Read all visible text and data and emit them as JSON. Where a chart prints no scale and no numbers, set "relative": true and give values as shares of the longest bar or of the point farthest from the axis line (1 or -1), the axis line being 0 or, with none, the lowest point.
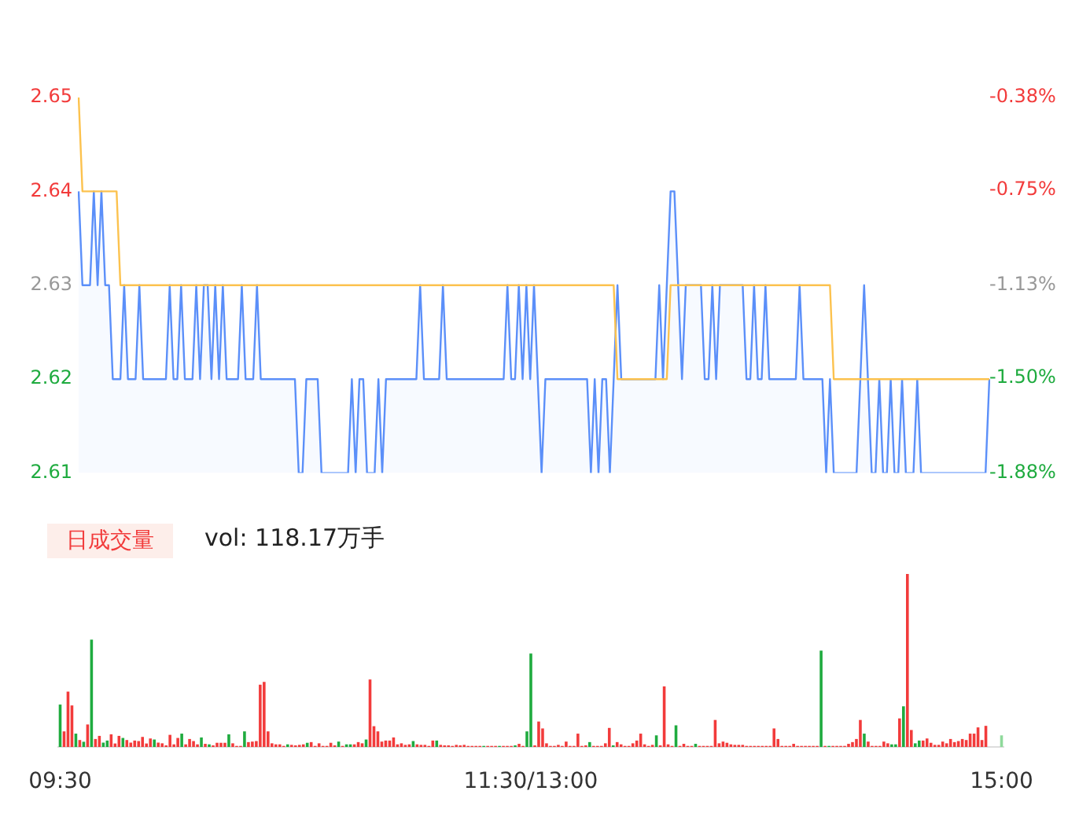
{
  "chart_data": [
    {
      "type": "line",
      "categories": [
        null,
        null,
        null,
        null,
        null,
        null,
        null,
        null,
        null,
        null,
        null,
        null,
        null,
        null,
        null,
        null,
        null,
        null,
        null,
        null,
        null,
        null,
        null,
        null,
        null,
        null,
        null,
        null,
        null,
        null,
        null,
        null,
        null,
        null,
        null,
        null,
        null,
        null,
        null,
        null,
        null,
        null,
        null,
        null,
        null,
        null,
        null,
        null,
        null,
        null,
        null,
        null,
        null,
        null,
        null,
        null,
        null,
        null,
        null,
        null,
        null,
        null,
        null,
        null,
        null,
        null,
        null,
        null,
        null,
        null,
        null,
        null,
        null,
        null,
        null,
        null,
        null,
        null,
        null,
        null,
        null,
        null,
        null,
        null,
        null,
        null,
        null,
        null,
        null,
        null,
        null,
        null,
        null,
        null,
        null,
        null,
        null,
        null,
        null,
        null,
        null,
        null,
        null,
        null,
        null,
        null,
        null,
        null,
        null,
        null,
        null,
        null,
        null,
        null,
        null,
        null,
        null,
        null,
        null,
        null,
        null,
        null,
        null,
        null,
        null,
        null,
        null,
        null,
        null,
        null,
        null,
        null,
        null,
        null,
        null,
        null,
        null,
        null,
        null,
        null,
        null,
        null,
        null,
        null,
        null,
        null,
        null,
        null,
        null,
        null,
        null,
        null,
        null,
        null,
        null,
        null,
        null,
        null,
        null,
        null,
        null,
        null,
        null,
        null,
        null,
        null,
        null,
        null,
        null,
        null,
        null,
        null,
        null,
        null,
        null,
        null,
        null,
        null,
        null,
        null,
        null,
        null,
        null,
        null,
        null,
        null,
        null,
        null,
        null,
        null,
        null,
        null,
        null,
        null,
        null,
        null,
        null,
        null,
        null,
        null,
        null,
        null,
        null,
        null,
        null,
        null,
        null,
        null,
        null,
        null,
        null,
        null,
        null,
        null,
        null,
        null,
        null,
        null,
        null,
        null,
        null,
        null,
        null,
        null,
        null,
        null,
        null,
        null,
        null,
        null,
        null,
        null,
        null,
        null,
        null,
        null,
        null,
        null,
        null,
        null,
        null
      ],
      "ylim": [
        2.61,
        2.65
      ],
      "yticks": [
        2.61,
        2.62,
        2.63,
        2.64,
        2.65
      ],
      "y2lim": [
        -1.88,
        -0.38
      ],
      "y2ticks": [
        {
          "value": -1.88,
          "label": "-1.88%"
        },
        {
          "value": -1.5,
          "label": "-1.50%"
        },
        {
          "value": -1.13,
          "label": "-1.13%"
        },
        {
          "value": -0.75,
          "label": "-0.75%"
        },
        {
          "value": -0.38,
          "label": "-0.38%"
        }
      ],
      "tick_labels": "y",
      "marker": "none",
      "series": [
        {
          "type": "area",
          "color": "#5b8ff9",
          "values": [
            2.64,
            2.63,
            2.63,
            2.63,
            2.64,
            2.63,
            2.64,
            2.63,
            2.63,
            2.62,
            2.62,
            2.62,
            2.63,
            2.62,
            2.62,
            2.62,
            2.63,
            2.62,
            2.62,
            2.62,
            2.62,
            2.62,
            2.62,
            2.62,
            2.63,
            2.62,
            2.62,
            2.63,
            2.62,
            2.62,
            2.62,
            2.63,
            2.62,
            2.63,
            2.63,
            2.62,
            2.63,
            2.62,
            2.63,
            2.62,
            2.62,
            2.62,
            2.62,
            2.63,
            2.62,
            2.62,
            2.62,
            2.63,
            2.62,
            2.62,
            2.62,
            2.62,
            2.62,
            2.62,
            2.62,
            2.62,
            2.62,
            2.62,
            2.61,
            2.61,
            2.62,
            2.62,
            2.62,
            2.62,
            2.61,
            2.61,
            2.61,
            2.61,
            2.61,
            2.61,
            2.61,
            2.61,
            2.62,
            2.61,
            2.62,
            2.62,
            2.61,
            2.61,
            2.61,
            2.62,
            2.61,
            2.62,
            2.62,
            2.62,
            2.62,
            2.62,
            2.62,
            2.62,
            2.62,
            2.62,
            2.63,
            2.62,
            2.62,
            2.62,
            2.62,
            2.62,
            2.63,
            2.62,
            2.62,
            2.62,
            2.62,
            2.62,
            2.62,
            2.62,
            2.62,
            2.62,
            2.62,
            2.62,
            2.62,
            2.62,
            2.62,
            2.62,
            2.62,
            2.63,
            2.62,
            2.62,
            2.63,
            2.62,
            2.63,
            2.62,
            2.63,
            2.62,
            2.61,
            2.62,
            2.62,
            2.62,
            2.62,
            2.62,
            2.62,
            2.62,
            2.62,
            2.62,
            2.62,
            2.62,
            2.62,
            2.61,
            2.62,
            2.61,
            2.62,
            2.62,
            2.61,
            2.62,
            2.63,
            2.62,
            2.62,
            2.62,
            2.62,
            2.62,
            2.62,
            2.62,
            2.62,
            2.62,
            2.62,
            2.63,
            2.62,
            2.63,
            2.64,
            2.64,
            2.63,
            2.62,
            2.63,
            2.63,
            2.63,
            2.63,
            2.63,
            2.62,
            2.62,
            2.63,
            2.62,
            2.63,
            2.63,
            2.63,
            2.63,
            2.63,
            2.63,
            2.63,
            2.62,
            2.62,
            2.63,
            2.62,
            2.62,
            2.63,
            2.62,
            2.62,
            2.62,
            2.62,
            2.62,
            2.62,
            2.62,
            2.62,
            2.63,
            2.62,
            2.62,
            2.62,
            2.62,
            2.62,
            2.62,
            2.61,
            2.62,
            2.61,
            2.61,
            2.61,
            2.61,
            2.61,
            2.61,
            2.61,
            2.62,
            2.63,
            2.62,
            2.61,
            2.61,
            2.62,
            2.61,
            2.61,
            2.62,
            2.61,
            2.61,
            2.62,
            2.61,
            2.61,
            2.61,
            2.62,
            2.61,
            2.61,
            2.61,
            2.61,
            2.61,
            2.61,
            2.61,
            2.61,
            2.61,
            2.61,
            2.61,
            2.61,
            2.61,
            2.61,
            2.61,
            2.61,
            2.61,
            2.61,
            2.62
          ]
        },
        {
          "type": "line",
          "color": "#fcc24e",
          "values": [
            2.65,
            2.64,
            2.64,
            2.64,
            2.64,
            2.64,
            2.64,
            2.64,
            2.64,
            2.64,
            2.64,
            2.63,
            2.63,
            2.63,
            2.63,
            2.63,
            2.63,
            2.63,
            2.63,
            2.63,
            2.63,
            2.63,
            2.63,
            2.63,
            2.63,
            2.63,
            2.63,
            2.63,
            2.63,
            2.63,
            2.63,
            2.63,
            2.63,
            2.63,
            2.63,
            2.63,
            2.63,
            2.63,
            2.63,
            2.63,
            2.63,
            2.63,
            2.63,
            2.63,
            2.63,
            2.63,
            2.63,
            2.63,
            2.63,
            2.63,
            2.63,
            2.63,
            2.63,
            2.63,
            2.63,
            2.63,
            2.63,
            2.63,
            2.63,
            2.63,
            2.63,
            2.63,
            2.63,
            2.63,
            2.63,
            2.63,
            2.63,
            2.63,
            2.63,
            2.63,
            2.63,
            2.63,
            2.63,
            2.63,
            2.63,
            2.63,
            2.63,
            2.63,
            2.63,
            2.63,
            2.63,
            2.63,
            2.63,
            2.63,
            2.63,
            2.63,
            2.63,
            2.63,
            2.63,
            2.63,
            2.63,
            2.63,
            2.63,
            2.63,
            2.63,
            2.63,
            2.63,
            2.63,
            2.63,
            2.63,
            2.63,
            2.63,
            2.63,
            2.63,
            2.63,
            2.63,
            2.63,
            2.63,
            2.63,
            2.63,
            2.63,
            2.63,
            2.63,
            2.63,
            2.63,
            2.63,
            2.63,
            2.63,
            2.63,
            2.63,
            2.63,
            2.63,
            2.63,
            2.63,
            2.63,
            2.63,
            2.63,
            2.63,
            2.63,
            2.63,
            2.63,
            2.63,
            2.63,
            2.63,
            2.63,
            2.63,
            2.63,
            2.63,
            2.63,
            2.63,
            2.63,
            2.63,
            2.62,
            2.62,
            2.62,
            2.62,
            2.62,
            2.62,
            2.62,
            2.62,
            2.62,
            2.62,
            2.62,
            2.62,
            2.62,
            2.62,
            2.63,
            2.63,
            2.63,
            2.63,
            2.63,
            2.63,
            2.63,
            2.63,
            2.63,
            2.63,
            2.63,
            2.63,
            2.63,
            2.63,
            2.63,
            2.63,
            2.63,
            2.63,
            2.63,
            2.63,
            2.63,
            2.63,
            2.63,
            2.63,
            2.63,
            2.63,
            2.63,
            2.63,
            2.63,
            2.63,
            2.63,
            2.63,
            2.63,
            2.63,
            2.63,
            2.63,
            2.63,
            2.63,
            2.63,
            2.63,
            2.63,
            2.63,
            2.63,
            2.62,
            2.62,
            2.62,
            2.62,
            2.62,
            2.62,
            2.62,
            2.62,
            2.62,
            2.62,
            2.62,
            2.62,
            2.62,
            2.62,
            2.62,
            2.62,
            2.62,
            2.62,
            2.62,
            2.62,
            2.62,
            2.62,
            2.62,
            2.62,
            2.62,
            2.62,
            2.62,
            2.62,
            2.62,
            2.62,
            2.62,
            2.62,
            2.62,
            2.62,
            2.62,
            2.62,
            2.62,
            2.62,
            2.62,
            2.62,
            2.62,
            2.62
          ]
        }
      ]
    },
    {
      "type": "bar",
      "title": "日成交量",
      "subtitle": "vol: 118.17万手",
      "relative": true,
      "categories": [
        "09:30",
        null,
        null,
        null,
        null,
        null,
        null,
        null,
        null,
        null,
        null,
        null,
        null,
        null,
        null,
        null,
        null,
        null,
        null,
        null,
        null,
        null,
        null,
        null,
        null,
        null,
        null,
        null,
        null,
        null,
        null,
        null,
        null,
        null,
        null,
        null,
        null,
        null,
        null,
        null,
        null,
        null,
        null,
        null,
        null,
        null,
        null,
        null,
        null,
        null,
        null,
        null,
        null,
        null,
        null,
        null,
        null,
        null,
        null,
        null,
        null,
        null,
        null,
        null,
        null,
        null,
        null,
        null,
        null,
        null,
        null,
        null,
        null,
        null,
        null,
        null,
        null,
        null,
        null,
        null,
        null,
        null,
        null,
        null,
        null,
        null,
        null,
        null,
        null,
        null,
        null,
        null,
        null,
        null,
        null,
        null,
        null,
        null,
        null,
        null,
        null,
        null,
        null,
        null,
        null,
        null,
        null,
        null,
        null,
        null,
        null,
        null,
        null,
        null,
        null,
        null,
        null,
        null,
        null,
        null,
        "11:30/13:00",
        null,
        null,
        null,
        null,
        null,
        null,
        null,
        null,
        null,
        null,
        null,
        null,
        null,
        null,
        null,
        null,
        null,
        null,
        null,
        null,
        null,
        null,
        null,
        null,
        null,
        null,
        null,
        null,
        null,
        null,
        null,
        null,
        null,
        null,
        null,
        null,
        null,
        null,
        null,
        null,
        null,
        null,
        null,
        null,
        null,
        null,
        null,
        null,
        null,
        null,
        null,
        null,
        null,
        null,
        null,
        null,
        null,
        null,
        null,
        null,
        null,
        null,
        null,
        null,
        null,
        null,
        null,
        null,
        null,
        null,
        null,
        null,
        null,
        null,
        null,
        null,
        null,
        null,
        null,
        null,
        null,
        null,
        null,
        null,
        null,
        null,
        null,
        null,
        null,
        null,
        null,
        null,
        null,
        null,
        null,
        null,
        null,
        null,
        null,
        null,
        null,
        null,
        null,
        null,
        null,
        null,
        null,
        null,
        null,
        null,
        null,
        null,
        null,
        null,
        null,
        null,
        null,
        null,
        null,
        "15:00"
      ],
      "values": [
        0.245,
        0.09,
        0.32,
        0.24,
        0.077,
        0.04,
        0.03,
        0.13,
        0.62,
        0.046,
        0.064,
        0.025,
        0.037,
        0.073,
        0.02,
        0.064,
        0.052,
        0.04,
        0.025,
        0.037,
        0.034,
        0.058,
        0.02,
        0.049,
        0.043,
        0.025,
        0.021,
        0.009,
        0.07,
        0.015,
        0.052,
        0.077,
        0.015,
        0.046,
        0.034,
        0.015,
        0.055,
        0.018,
        0.015,
        0.009,
        0.024,
        0.024,
        0.024,
        0.073,
        0.021,
        0.006,
        0.006,
        0.09,
        0.028,
        0.031,
        0.034,
        0.36,
        0.376,
        0.09,
        0.021,
        0.015,
        0.015,
        0.006,
        0.015,
        0.012,
        0.009,
        0.012,
        0.015,
        0.024,
        0.028,
        0.006,
        0.021,
        0.006,
        0.006,
        0.024,
        0.009,
        0.031,
        0.006,
        0.015,
        0.015,
        0.015,
        0.028,
        0.021,
        0.043,
        0.39,
        0.12,
        0.09,
        0.031,
        0.037,
        0.037,
        0.055,
        0.015,
        0.021,
        0.012,
        0.015,
        0.034,
        0.015,
        0.012,
        0.012,
        0.006,
        0.037,
        0.037,
        0.012,
        0.009,
        0.009,
        0.006,
        0.012,
        0.009,
        0.012,
        0.006,
        0.006,
        0.006,
        0.006,
        0.006,
        0.006,
        0.006,
        0.006,
        0.006,
        0.006,
        0.006,
        0.006,
        0.009,
        0.018,
        0.006,
        0.09,
        0.54,
        0.009,
        0.147,
        0.107,
        0.021,
        0.006,
        0.006,
        0.012,
        0.006,
        0.031,
        0.006,
        0.006,
        0.077,
        0.006,
        0.009,
        0.028,
        0.006,
        0.006,
        0.006,
        0.021,
        0.11,
        0.009,
        0.028,
        0.015,
        0.006,
        0.006,
        0.021,
        0.037,
        0.077,
        0.015,
        0.006,
        0.012,
        0.067,
        0.009,
        0.35,
        0.015,
        0.006,
        0.125,
        0.006,
        0.018,
        0.006,
        0.006,
        0.018,
        0.006,
        0.006,
        0.006,
        0.006,
        0.156,
        0.021,
        0.031,
        0.024,
        0.015,
        0.012,
        0.012,
        0.012,
        0.006,
        0.006,
        0.006,
        0.006,
        0.006,
        0.006,
        0.006,
        0.107,
        0.046,
        0.006,
        0.006,
        0.006,
        0.018,
        0.006,
        0.006,
        0.006,
        0.006,
        0.006,
        0.006,
        0.557,
        0.006,
        0.006,
        0.006,
        0.006,
        0.006,
        0.006,
        0.018,
        0.028,
        0.046,
        0.156,
        0.077,
        0.031,
        0.006,
        0.006,
        0.006,
        0.031,
        0.021,
        0.015,
        0.015,
        0.165,
        0.235,
        1,
        0.098,
        0.021,
        0.037,
        0.037,
        0.049,
        0.024,
        0.012,
        0.012,
        0.031,
        0.021,
        0.046,
        0.028,
        0.034,
        0.046,
        0.04,
        0.077,
        0.077,
        0.113,
        0.04,
        0.122,
        0,
        0,
        0,
        0.067
      ],
      "colors": [
        "#1fab3f",
        "#f23b3b",
        "#f23b3b",
        "#f23b3b",
        "#1fab3f",
        "#f23b3b",
        "#1fab3f",
        "#f23b3b",
        "#1fab3f",
        "#f23b3b",
        "#f23b3b",
        "#1fab3f",
        "#1fab3f",
        "#f23b3b",
        "#f23b3b",
        "#f23b3b",
        "#1fab3f",
        "#f23b3b",
        "#f23b3b",
        "#f23b3b",
        "#f23b3b",
        "#f23b3b",
        "#f23b3b",
        "#f23b3b",
        "#1fab3f",
        "#f23b3b",
        "#f23b3b",
        "#f23b3b",
        "#f23b3b",
        "#f23b3b",
        "#f23b3b",
        "#1fab3f",
        "#f23b3b",
        "#f23b3b",
        "#f23b3b",
        "#f23b3b",
        "#1fab3f",
        "#f23b3b",
        "#1fab3f",
        "#f23b3b",
        "#f23b3b",
        "#f23b3b",
        "#f23b3b",
        "#1fab3f",
        "#f23b3b",
        "#f23b3b",
        "#f23b3b",
        "#1fab3f",
        "#f23b3b",
        "#f23b3b",
        "#f23b3b",
        "#f23b3b",
        "#f23b3b",
        "#f23b3b",
        "#f23b3b",
        "#f23b3b",
        "#f23b3b",
        "#f23b3b",
        "#1fab3f",
        "#f23b3b",
        "#f23b3b",
        "#f23b3b",
        "#f23b3b",
        "#1fab3f",
        "#f23b3b",
        "#f23b3b",
        "#f23b3b",
        "#f23b3b",
        "#f23b3b",
        "#f23b3b",
        "#f23b3b",
        "#1fab3f",
        "#f23b3b",
        "#1fab3f",
        "#1fab3f",
        "#f23b3b",
        "#f23b3b",
        "#f23b3b",
        "#1fab3f",
        "#f23b3b",
        "#f23b3b",
        "#f23b3b",
        "#f23b3b",
        "#f23b3b",
        "#f23b3b",
        "#f23b3b",
        "#f23b3b",
        "#f23b3b",
        "#f23b3b",
        "#f23b3b",
        "#1fab3f",
        "#f23b3b",
        "#f23b3b",
        "#f23b3b",
        "#f23b3b",
        "#f23b3b",
        "#1fab3f",
        "#f23b3b",
        "#f23b3b",
        "#f23b3b",
        "#f23b3b",
        "#f23b3b",
        "#f23b3b",
        "#f23b3b",
        "#f23b3b",
        "#f23b3b",
        "#f23b3b",
        "#f23b3b",
        "#1fab3f",
        "#f23b3b",
        "#f23b3b",
        "#f23b3b",
        "#1fab3f",
        "#f23b3b",
        "#f23b3b",
        "#f23b3b",
        "#1fab3f",
        "#f23b3b",
        "#f23b3b",
        "#1fab3f",
        "#1fab3f",
        "#f23b3b",
        "#f23b3b",
        "#f23b3b",
        "#f23b3b",
        "#f23b3b",
        "#f23b3b",
        "#f23b3b",
        "#f23b3b",
        "#f23b3b",
        "#f23b3b",
        "#f23b3b",
        "#f23b3b",
        "#f23b3b",
        "#f23b3b",
        "#1fab3f",
        "#f23b3b",
        "#f23b3b",
        "#f23b3b",
        "#f23b3b",
        "#f23b3b",
        "#1fab3f",
        "#f23b3b",
        "#f23b3b",
        "#f23b3b",
        "#f23b3b",
        "#f23b3b",
        "#f23b3b",
        "#f23b3b",
        "#f23b3b",
        "#f23b3b",
        "#f23b3b",
        "#1fab3f",
        "#f23b3b",
        "#f23b3b",
        "#f23b3b",
        "#f23b3b",
        "#1fab3f",
        "#f23b3b",
        "#f23b3b",
        "#f23b3b",
        "#f23b3b",
        "#1fab3f",
        "#f23b3b",
        "#f23b3b",
        "#f23b3b",
        "#f23b3b",
        "#f23b3b",
        "#f23b3b",
        "#f23b3b",
        "#f23b3b",
        "#f23b3b",
        "#f23b3b",
        "#f23b3b",
        "#f23b3b",
        "#f23b3b",
        "#f23b3b",
        "#f23b3b",
        "#f23b3b",
        "#f23b3b",
        "#f23b3b",
        "#f23b3b",
        "#f23b3b",
        "#f23b3b",
        "#f23b3b",
        "#f23b3b",
        "#f23b3b",
        "#f23b3b",
        "#f23b3b",
        "#f23b3b",
        "#f23b3b",
        "#f23b3b",
        "#f23b3b",
        "#f23b3b",
        "#1fab3f",
        "#f23b3b",
        "#1fab3f",
        "#f23b3b",
        "#f23b3b",
        "#f23b3b",
        "#f23b3b",
        "#f23b3b",
        "#f23b3b",
        "#f23b3b",
        "#f23b3b",
        "#1fab3f",
        "#f23b3b",
        "#f23b3b",
        "#f23b3b",
        "#f23b3b",
        "#f23b3b",
        "#f23b3b",
        "#1fab3f",
        "#1fab3f",
        "#f23b3b",
        "#1fab3f",
        "#f23b3b",
        "#f23b3b",
        "#1fab3f",
        "#1fab3f",
        "#f23b3b",
        "#f23b3b",
        "#f23b3b",
        "#f23b3b",
        "#f23b3b",
        "#f23b3b",
        "#f23b3b",
        "#f23b3b",
        "#f23b3b",
        "#f23b3b",
        "#f23b3b",
        "#f23b3b",
        "#f23b3b",
        "#f23b3b",
        "#f23b3b",
        "#f23b3b",
        "#f23b3b",
        "#f23b3b",
        "#f23b3b",
        "#f23b3b",
        "#8fd99b"
      ]
    }
  ]
}
